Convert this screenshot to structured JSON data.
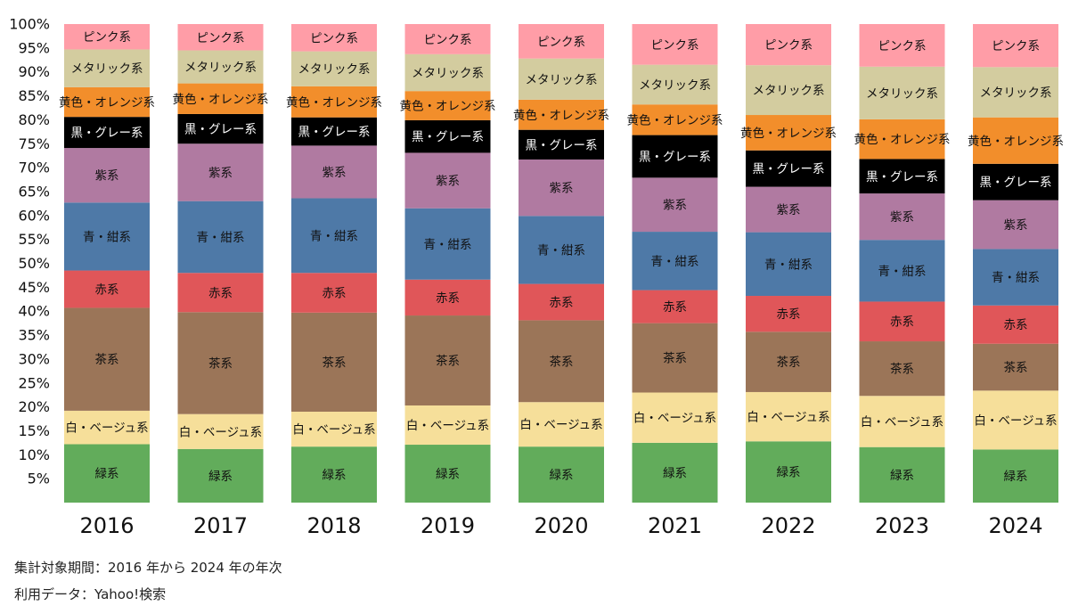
{
  "chart_data": {
    "type": "bar",
    "stacked": true,
    "categories": [
      "2016",
      "2017",
      "2018",
      "2019",
      "2020",
      "2021",
      "2022",
      "2023",
      "2024"
    ],
    "ylim": [
      0,
      100
    ],
    "y_ticks": [
      "5%",
      "10%",
      "15%",
      "20%",
      "25%",
      "30%",
      "35%",
      "40%",
      "45%",
      "50%",
      "55%",
      "60%",
      "65%",
      "70%",
      "75%",
      "80%",
      "85%",
      "90%",
      "95%",
      "100%"
    ],
    "grid": false,
    "legend": "none",
    "series": [
      {
        "name": "緑系",
        "color": "#62ac5b",
        "values": [
          12.2,
          11.2,
          11.7,
          12.1,
          11.7,
          12.5,
          12.8,
          11.6,
          11.1
        ]
      },
      {
        "name": "白・ベージュ系",
        "color": "#f6df9a",
        "values": [
          7.0,
          7.3,
          7.3,
          8.2,
          9.3,
          10.5,
          10.3,
          10.7,
          12.3
        ]
      },
      {
        "name": "茶系",
        "color": "#9b7558",
        "values": [
          21.5,
          21.3,
          20.7,
          18.8,
          17.1,
          14.5,
          12.6,
          11.4,
          9.8
        ]
      },
      {
        "name": "赤系",
        "color": "#e05659",
        "values": [
          7.8,
          8.2,
          8.3,
          7.5,
          7.6,
          6.9,
          7.5,
          8.3,
          8.0
        ]
      },
      {
        "name": "青・紺系",
        "color": "#4e79a7",
        "values": [
          14.2,
          15.0,
          15.6,
          14.9,
          14.2,
          12.2,
          13.3,
          12.9,
          11.8
        ]
      },
      {
        "name": "紫系",
        "color": "#b07aa1",
        "values": [
          11.4,
          12.0,
          11.0,
          11.6,
          11.8,
          11.3,
          9.5,
          9.7,
          10.2
        ]
      },
      {
        "name": "黒・グレー系",
        "color": "#000000",
        "values": [
          6.5,
          6.2,
          5.9,
          6.8,
          6.2,
          8.9,
          7.6,
          7.2,
          7.6
        ]
      },
      {
        "name": "黄色・オレンジ系",
        "color": "#f28e2b",
        "values": [
          6.2,
          6.4,
          6.5,
          6.1,
          6.3,
          6.4,
          7.4,
          8.3,
          9.7
        ]
      },
      {
        "name": "メタリック系",
        "color": "#d3cc9f",
        "values": [
          7.9,
          6.9,
          7.3,
          7.7,
          8.6,
          8.3,
          10.4,
          11.0,
          10.5
        ]
      },
      {
        "name": "ピンク系",
        "color": "#ff9da7",
        "values": [
          5.3,
          5.5,
          5.7,
          6.3,
          7.2,
          8.5,
          8.6,
          8.9,
          9.0
        ]
      }
    ]
  },
  "notes": {
    "period": "集計対象期間：2016 年から 2024 年の年次",
    "source": "利用データ：Yahoo!検索"
  }
}
